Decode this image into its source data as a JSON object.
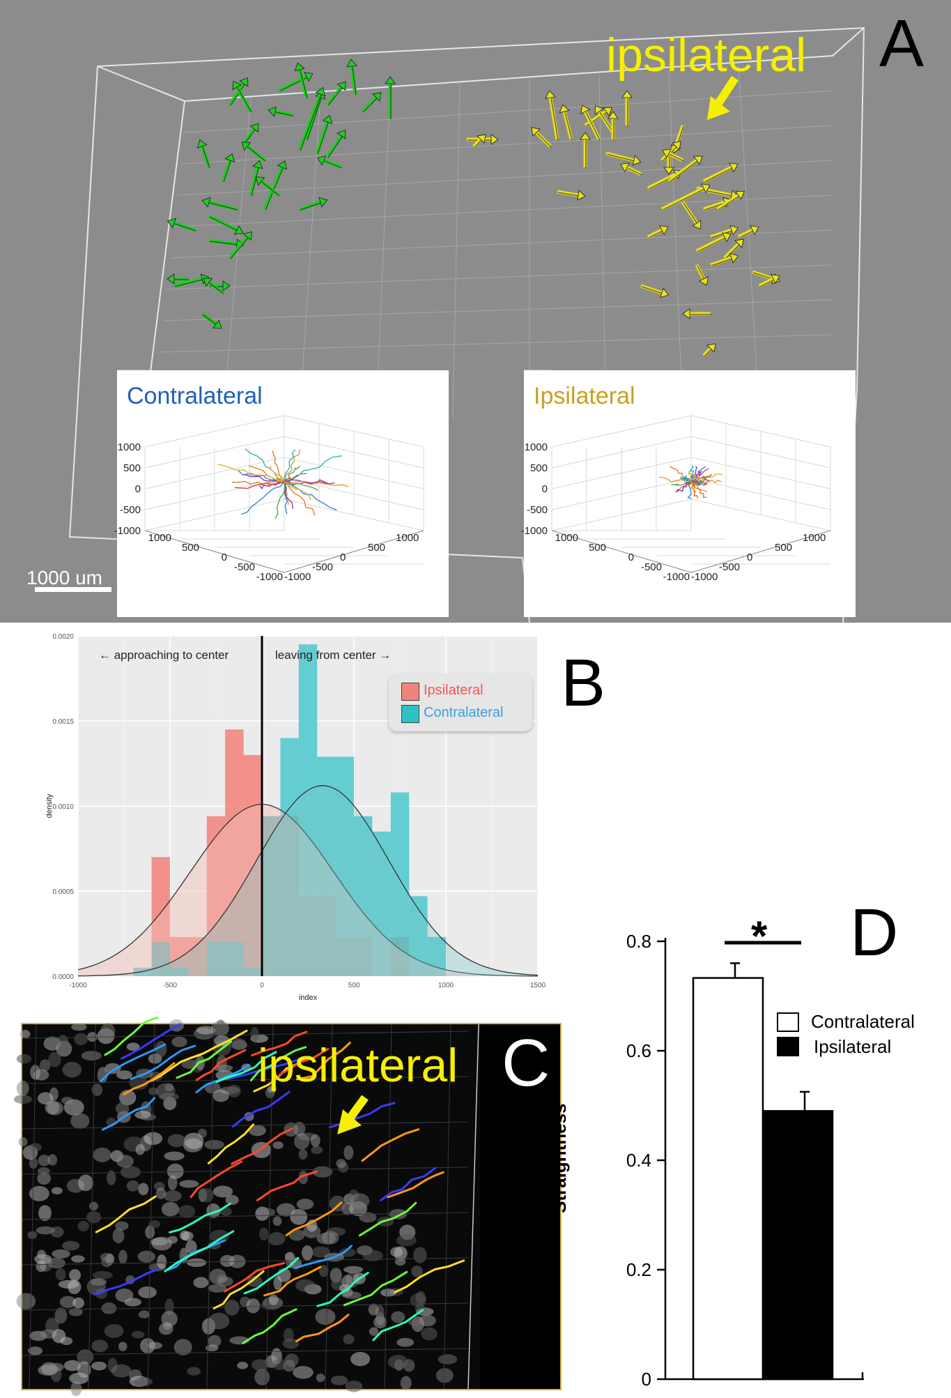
{
  "panel_a": {
    "letter": "A",
    "callout": "ipsilateral",
    "scale_bar_label": "1000 um",
    "colors": {
      "contralateral_arrows": "#22cc22",
      "ipsilateral_arrows": "#e8e020",
      "background": "#8c8c8c"
    },
    "inset_left": {
      "title": "Contralateral",
      "title_color": "#1f5fbf",
      "z_ticks": [
        "1000",
        "500",
        "0",
        "-500",
        "-1000"
      ],
      "left_ticks": [
        "1000",
        "500",
        "0",
        "-500",
        "-1000"
      ],
      "right_ticks": [
        "1000",
        "500",
        "0",
        "-500",
        "-1000"
      ]
    },
    "inset_right": {
      "title": "Ipsilateral",
      "title_color": "#c8a020",
      "z_ticks": [
        "1000",
        "500",
        "0",
        "-500",
        "-1000"
      ],
      "left_ticks": [
        "1000",
        "500",
        "0",
        "-500",
        "-1000"
      ],
      "right_ticks": [
        "1000",
        "500",
        "0",
        "-500",
        "-1000"
      ]
    }
  },
  "panel_b": {
    "letter": "B",
    "annotation_left": "← approaching to center",
    "annotation_right": "leaving from center →",
    "legend": [
      {
        "label": "Ipsilateral",
        "color": "#f2837a"
      },
      {
        "label": "Contralateral",
        "color": "#2ec0c6"
      }
    ]
  },
  "panel_c": {
    "letter": "C",
    "callout": "ipsilateral"
  },
  "panel_d": {
    "letter": "D",
    "significance": "*",
    "legend": [
      {
        "label": "Contralateral",
        "fill": "#ffffff"
      },
      {
        "label": "Ipsilateral",
        "fill": "#000000"
      }
    ]
  },
  "chart_data": [
    {
      "id": "panel_b",
      "type": "bar",
      "title": "",
      "xlabel": "index",
      "ylabel": "density",
      "xlim": [
        -1000,
        1500
      ],
      "ylim": [
        0,
        0.002
      ],
      "x_ticks": [
        "-1000",
        "-500",
        "0",
        "500",
        "1000",
        "1500"
      ],
      "y_ticks": [
        "0.0000",
        "0.0005",
        "0.0010",
        "0.0015",
        "0.0020"
      ],
      "bin_edges": [
        -700,
        -600,
        -500,
        -400,
        -300,
        -200,
        -100,
        0,
        100,
        200,
        300,
        400,
        500,
        600,
        700,
        800,
        900,
        1000
      ],
      "series": [
        {
          "name": "Ipsilateral",
          "values": [
            0,
            0.0007,
            0.00023,
            0.00023,
            0.00094,
            0.00145,
            0.0013,
            0.00094,
            0.00094,
            0.00047,
            0.00047,
            0.00023,
            0.00023,
            0.0,
            0.00023,
            0,
            0
          ]
        },
        {
          "name": "Contralateral",
          "values": [
            5e-05,
            0.0002,
            5e-05,
            0.0,
            0.0002,
            0.0002,
            5e-05,
            0.00094,
            0.0014,
            0.00195,
            0.00129,
            0.00129,
            0.00094,
            0.00085,
            0.00108,
            0.00047,
            0.00023
          ]
        }
      ],
      "density_curves": [
        {
          "name": "Ipsilateral",
          "mean": 0,
          "sd": 390,
          "peak": 0.00101
        },
        {
          "name": "Contralateral",
          "mean": 330,
          "sd": 360,
          "peak": 0.00112
        }
      ],
      "vline_x": 0
    },
    {
      "id": "panel_d",
      "type": "bar",
      "title": "",
      "xlabel": "",
      "ylabel": "Straightness",
      "ylim": [
        0,
        0.8
      ],
      "y_ticks": [
        "0",
        "0.2",
        "0.4",
        "0.6",
        "0.8"
      ],
      "categories": [
        "Contralateral",
        "Ipsilateral"
      ],
      "values": [
        0.733,
        0.49
      ],
      "errors": [
        0.027,
        0.035
      ]
    }
  ]
}
